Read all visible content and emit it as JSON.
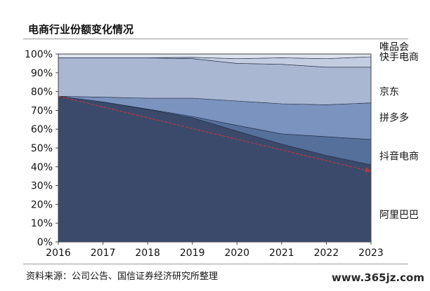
{
  "title": "电商行业份额变化情况",
  "source": "资料来源：公司公告、国信证券经济研究所整理",
  "watermark": "www.365jz.com",
  "chart_data": {
    "type": "area",
    "stacked": true,
    "x": [
      "2016",
      "2017",
      "2018",
      "2019",
      "2020",
      "2021",
      "2022",
      "2023"
    ],
    "ylim": [
      0,
      100
    ],
    "yticks": [
      "0%",
      "10%",
      "20%",
      "30%",
      "40%",
      "50%",
      "60%",
      "70%",
      "80%",
      "90%",
      "100%"
    ],
    "series": [
      {
        "name": "阿里巴巴",
        "values": [
          77.5,
          74.5,
          70.5,
          66.0,
          59.0,
          52.0,
          46.0,
          41.0
        ],
        "color": "#3b4a6b"
      },
      {
        "name": "抖音电商",
        "values": [
          0.0,
          0.0,
          0.2,
          0.8,
          3.0,
          5.5,
          10.0,
          13.5
        ],
        "color": "#56709c"
      },
      {
        "name": "拼多多",
        "values": [
          0.0,
          2.5,
          5.8,
          9.7,
          13.0,
          16.0,
          17.0,
          19.5
        ],
        "color": "#7b93bf"
      },
      {
        "name": "京东",
        "values": [
          20.5,
          21.0,
          21.5,
          21.0,
          20.0,
          21.0,
          20.0,
          19.0
        ],
        "color": "#aab7d2"
      },
      {
        "name": "快手电商",
        "values": [
          0.0,
          0.0,
          0.0,
          0.7,
          2.5,
          3.5,
          4.5,
          5.5
        ],
        "color": "#c3cde0"
      },
      {
        "name": "唯品会",
        "values": [
          2.0,
          2.0,
          2.0,
          1.8,
          2.5,
          2.0,
          2.5,
          1.5
        ],
        "color": "#dde3ee"
      }
    ],
    "trend_line": {
      "from": [
        2016,
        77.5
      ],
      "to": [
        2023,
        37.5
      ],
      "color": "#b03a46"
    },
    "legend_placement": "right"
  }
}
